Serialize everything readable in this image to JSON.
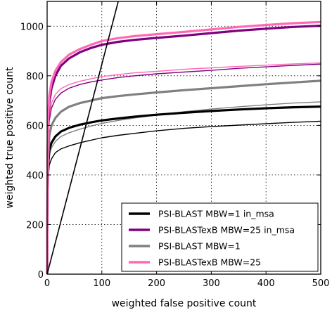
{
  "chart_data": {
    "type": "line",
    "xlabel": "weighted false positive count",
    "ylabel": "weighted true positive count",
    "xlim": [
      0,
      500
    ],
    "ylim": [
      0,
      1100
    ],
    "x_ticks": [
      "0",
      "100",
      "200",
      "300",
      "400",
      "500"
    ],
    "y_ticks": [
      "0",
      "200",
      "400",
      "600",
      "800",
      "1000"
    ],
    "grid": "dotted",
    "legend_position": "lower-right",
    "series": [
      {
        "name": "PSI-BLAST MBW=1 in_msa",
        "color": "#000000",
        "points": [
          [
            0,
            0
          ],
          [
            1,
            320
          ],
          [
            2,
            440
          ],
          [
            4,
            500
          ],
          [
            8,
            530
          ],
          [
            15,
            555
          ],
          [
            25,
            575
          ],
          [
            40,
            590
          ],
          [
            60,
            603
          ],
          [
            80,
            612
          ],
          [
            100,
            620
          ],
          [
            130,
            628
          ],
          [
            160,
            635
          ],
          [
            200,
            643
          ],
          [
            250,
            651
          ],
          [
            300,
            658
          ],
          [
            350,
            664
          ],
          [
            400,
            669
          ],
          [
            450,
            673
          ],
          [
            500,
            676
          ]
        ],
        "thin_points": [
          [
            0,
            0
          ],
          [
            1,
            290
          ],
          [
            2,
            390
          ],
          [
            4,
            440
          ],
          [
            8,
            465
          ],
          [
            15,
            490
          ],
          [
            25,
            505
          ],
          [
            40,
            517
          ],
          [
            60,
            530
          ],
          [
            80,
            540
          ],
          [
            100,
            550
          ],
          [
            130,
            560
          ],
          [
            160,
            568
          ],
          [
            200,
            578
          ],
          [
            250,
            588
          ],
          [
            300,
            595
          ],
          [
            350,
            601
          ],
          [
            400,
            607
          ],
          [
            450,
            612
          ],
          [
            500,
            617
          ]
        ]
      },
      {
        "name": "PSI-BLASTexB MBW=25 in_msa",
        "color": "#800080",
        "points": [
          [
            0,
            0
          ],
          [
            1,
            480
          ],
          [
            2,
            610
          ],
          [
            4,
            690
          ],
          [
            8,
            750
          ],
          [
            15,
            800
          ],
          [
            25,
            840
          ],
          [
            40,
            870
          ],
          [
            60,
            895
          ],
          [
            80,
            912
          ],
          [
            100,
            925
          ],
          [
            130,
            937
          ],
          [
            160,
            945
          ],
          [
            200,
            953
          ],
          [
            250,
            962
          ],
          [
            300,
            972
          ],
          [
            350,
            982
          ],
          [
            400,
            990
          ],
          [
            450,
            997
          ],
          [
            500,
            1002
          ]
        ],
        "thin_points": [
          [
            0,
            0
          ],
          [
            1,
            460
          ],
          [
            2,
            560
          ],
          [
            4,
            620
          ],
          [
            8,
            670
          ],
          [
            15,
            705
          ],
          [
            25,
            730
          ],
          [
            40,
            750
          ],
          [
            60,
            765
          ],
          [
            80,
            775
          ],
          [
            100,
            783
          ],
          [
            130,
            793
          ],
          [
            160,
            800
          ],
          [
            200,
            808
          ],
          [
            250,
            815
          ],
          [
            300,
            822
          ],
          [
            350,
            830
          ],
          [
            400,
            836
          ],
          [
            450,
            842
          ],
          [
            500,
            847
          ]
        ]
      },
      {
        "name": "PSI-BLAST MBW=1",
        "color": "#808080",
        "points": [
          [
            0,
            0
          ],
          [
            1,
            330
          ],
          [
            2,
            480
          ],
          [
            4,
            560
          ],
          [
            8,
            600
          ],
          [
            15,
            630
          ],
          [
            25,
            655
          ],
          [
            40,
            675
          ],
          [
            60,
            690
          ],
          [
            80,
            700
          ],
          [
            100,
            710
          ],
          [
            130,
            718
          ],
          [
            160,
            725
          ],
          [
            200,
            733
          ],
          [
            250,
            742
          ],
          [
            300,
            750
          ],
          [
            350,
            758
          ],
          [
            400,
            766
          ],
          [
            450,
            773
          ],
          [
            500,
            780
          ]
        ],
        "thin_points": [
          [
            0,
            0
          ],
          [
            1,
            310
          ],
          [
            2,
            420
          ],
          [
            4,
            480
          ],
          [
            8,
            510
          ],
          [
            15,
            535
          ],
          [
            25,
            555
          ],
          [
            40,
            570
          ],
          [
            60,
            585
          ],
          [
            80,
            597
          ],
          [
            100,
            608
          ],
          [
            130,
            620
          ],
          [
            160,
            630
          ],
          [
            200,
            642
          ],
          [
            250,
            655
          ],
          [
            300,
            666
          ],
          [
            350,
            675
          ],
          [
            400,
            683
          ],
          [
            450,
            690
          ],
          [
            500,
            695
          ]
        ]
      },
      {
        "name": "PSI-BLASTexB MBW=25",
        "color": "#ff69b4",
        "points": [
          [
            0,
            0
          ],
          [
            1,
            500
          ],
          [
            2,
            640
          ],
          [
            4,
            720
          ],
          [
            8,
            775
          ],
          [
            15,
            820
          ],
          [
            25,
            855
          ],
          [
            40,
            885
          ],
          [
            60,
            908
          ],
          [
            80,
            925
          ],
          [
            100,
            940
          ],
          [
            130,
            952
          ],
          [
            160,
            960
          ],
          [
            200,
            968
          ],
          [
            250,
            977
          ],
          [
            300,
            987
          ],
          [
            350,
            997
          ],
          [
            400,
            1005
          ],
          [
            450,
            1012
          ],
          [
            500,
            1017
          ]
        ],
        "thin_points": [
          [
            0,
            0
          ],
          [
            1,
            470
          ],
          [
            2,
            580
          ],
          [
            4,
            640
          ],
          [
            8,
            690
          ],
          [
            15,
            725
          ],
          [
            25,
            748
          ],
          [
            40,
            765
          ],
          [
            60,
            778
          ],
          [
            80,
            788
          ],
          [
            100,
            797
          ],
          [
            130,
            805
          ],
          [
            160,
            812
          ],
          [
            200,
            818
          ],
          [
            250,
            826
          ],
          [
            300,
            832
          ],
          [
            350,
            838
          ],
          [
            400,
            843
          ],
          [
            450,
            848
          ],
          [
            500,
            852
          ]
        ]
      }
    ],
    "reference_line": {
      "color": "#000000",
      "points": [
        [
          0,
          0
        ],
        [
          130,
          1100
        ]
      ]
    }
  }
}
